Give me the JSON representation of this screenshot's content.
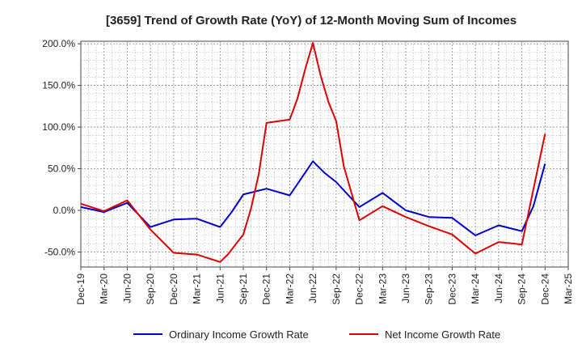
{
  "chart_data": {
    "type": "line",
    "title": "[3659]  Trend of Growth Rate (YoY) of 12-Month Moving Sum of Incomes",
    "xlabel": "",
    "ylabel": "",
    "x_ticks": [
      "Dec-19",
      "Mar-20",
      "Jun-20",
      "Sep-20",
      "Dec-20",
      "Mar-21",
      "Jun-21",
      "Sep-21",
      "Dec-21",
      "Mar-22",
      "Jun-22",
      "Sep-22",
      "Dec-22",
      "Mar-23",
      "Jun-23",
      "Sep-23",
      "Dec-23",
      "Mar-24",
      "Jun-24",
      "Sep-24",
      "Dec-24",
      "Mar-25"
    ],
    "y_ticks": [
      "200.0%",
      "150.0%",
      "100.0%",
      "50.0%",
      "0.0%",
      "-50.0%"
    ],
    "y_tick_values": [
      200,
      150,
      100,
      50,
      0,
      -50
    ],
    "ylim": [
      -68,
      203
    ],
    "grid": true,
    "legend_position": "bottom",
    "series": [
      {
        "name": "Ordinary Income Growth Rate",
        "color": "#0000cc",
        "points": [
          [
            0,
            4
          ],
          [
            1,
            -2
          ],
          [
            2,
            9
          ],
          [
            3,
            -20
          ],
          [
            4,
            -11
          ],
          [
            5,
            -10
          ],
          [
            6,
            -20
          ],
          [
            6.5,
            -2
          ],
          [
            7,
            19
          ],
          [
            8,
            26
          ],
          [
            9,
            18
          ],
          [
            10,
            59
          ],
          [
            10.5,
            45
          ],
          [
            11,
            34
          ],
          [
            12,
            4
          ],
          [
            13,
            21
          ],
          [
            14,
            0
          ],
          [
            15,
            -8
          ],
          [
            16,
            -9
          ],
          [
            17,
            -30
          ],
          [
            18,
            -18
          ],
          [
            19,
            -25
          ],
          [
            19.5,
            5
          ],
          [
            20,
            56
          ]
        ]
      },
      {
        "name": "Net Income Growth Rate",
        "color": "#dd0000",
        "points": [
          [
            0,
            8
          ],
          [
            1,
            -1
          ],
          [
            2,
            12
          ],
          [
            3,
            -23
          ],
          [
            4,
            -51
          ],
          [
            5,
            -53
          ],
          [
            6,
            -62
          ],
          [
            6.33,
            -53
          ],
          [
            7,
            -29
          ],
          [
            7.33,
            2
          ],
          [
            7.67,
            44
          ],
          [
            8,
            105
          ],
          [
            9,
            109
          ],
          [
            9.33,
            134
          ],
          [
            9.67,
            170
          ],
          [
            10,
            201
          ],
          [
            10.33,
            162
          ],
          [
            10.67,
            130
          ],
          [
            11,
            107
          ],
          [
            11.33,
            53
          ],
          [
            12,
            -12
          ],
          [
            13,
            5
          ],
          [
            14,
            -8
          ],
          [
            15,
            -19
          ],
          [
            16,
            -29
          ],
          [
            17,
            -52
          ],
          [
            18,
            -38
          ],
          [
            19,
            -41
          ],
          [
            20,
            92
          ]
        ]
      }
    ]
  }
}
